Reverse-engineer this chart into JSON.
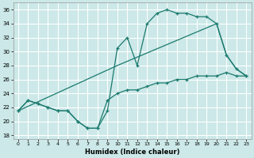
{
  "xlabel": "Humidex (Indice chaleur)",
  "xlim": [
    -0.5,
    23.5
  ],
  "ylim": [
    17.5,
    37
  ],
  "yticks": [
    18,
    20,
    22,
    24,
    26,
    28,
    30,
    32,
    34,
    36
  ],
  "xticks": [
    0,
    1,
    2,
    3,
    4,
    5,
    6,
    7,
    8,
    9,
    10,
    11,
    12,
    13,
    14,
    15,
    16,
    17,
    18,
    19,
    20,
    21,
    22,
    23
  ],
  "bg_color": "#cce8e8",
  "line_color": "#1a7a6e",
  "grid_color": "#ffffff",
  "line1_x": [
    0,
    1,
    2,
    3,
    4,
    5,
    6,
    7,
    8,
    9,
    10,
    11,
    12,
    13,
    14,
    15,
    16,
    17,
    18,
    19,
    20,
    21,
    22,
    23
  ],
  "line1_y": [
    21.5,
    23.0,
    22.5,
    22.0,
    21.5,
    21.5,
    20.0,
    19.0,
    19.0,
    23.0,
    24.0,
    24.5,
    24.5,
    25.0,
    25.5,
    25.5,
    26.0,
    26.0,
    26.5,
    26.5,
    26.5,
    27.0,
    26.5,
    26.5
  ],
  "line2_x": [
    0,
    1,
    2,
    3,
    4,
    5,
    6,
    7,
    8,
    9,
    10,
    11,
    12,
    13,
    14,
    15,
    16,
    17,
    18,
    19,
    20,
    21,
    22,
    23
  ],
  "line2_y": [
    21.5,
    23.0,
    22.5,
    22.0,
    21.5,
    21.5,
    20.0,
    19.0,
    19.0,
    21.5,
    30.5,
    32.0,
    28.0,
    34.0,
    35.5,
    36.0,
    35.5,
    35.5,
    35.0,
    35.0,
    34.0,
    29.5,
    27.5,
    26.5
  ],
  "line3_x": [
    0,
    10,
    20,
    21,
    22,
    23
  ],
  "line3_y": [
    21.5,
    28.0,
    34.0,
    29.5,
    27.5,
    26.5
  ]
}
